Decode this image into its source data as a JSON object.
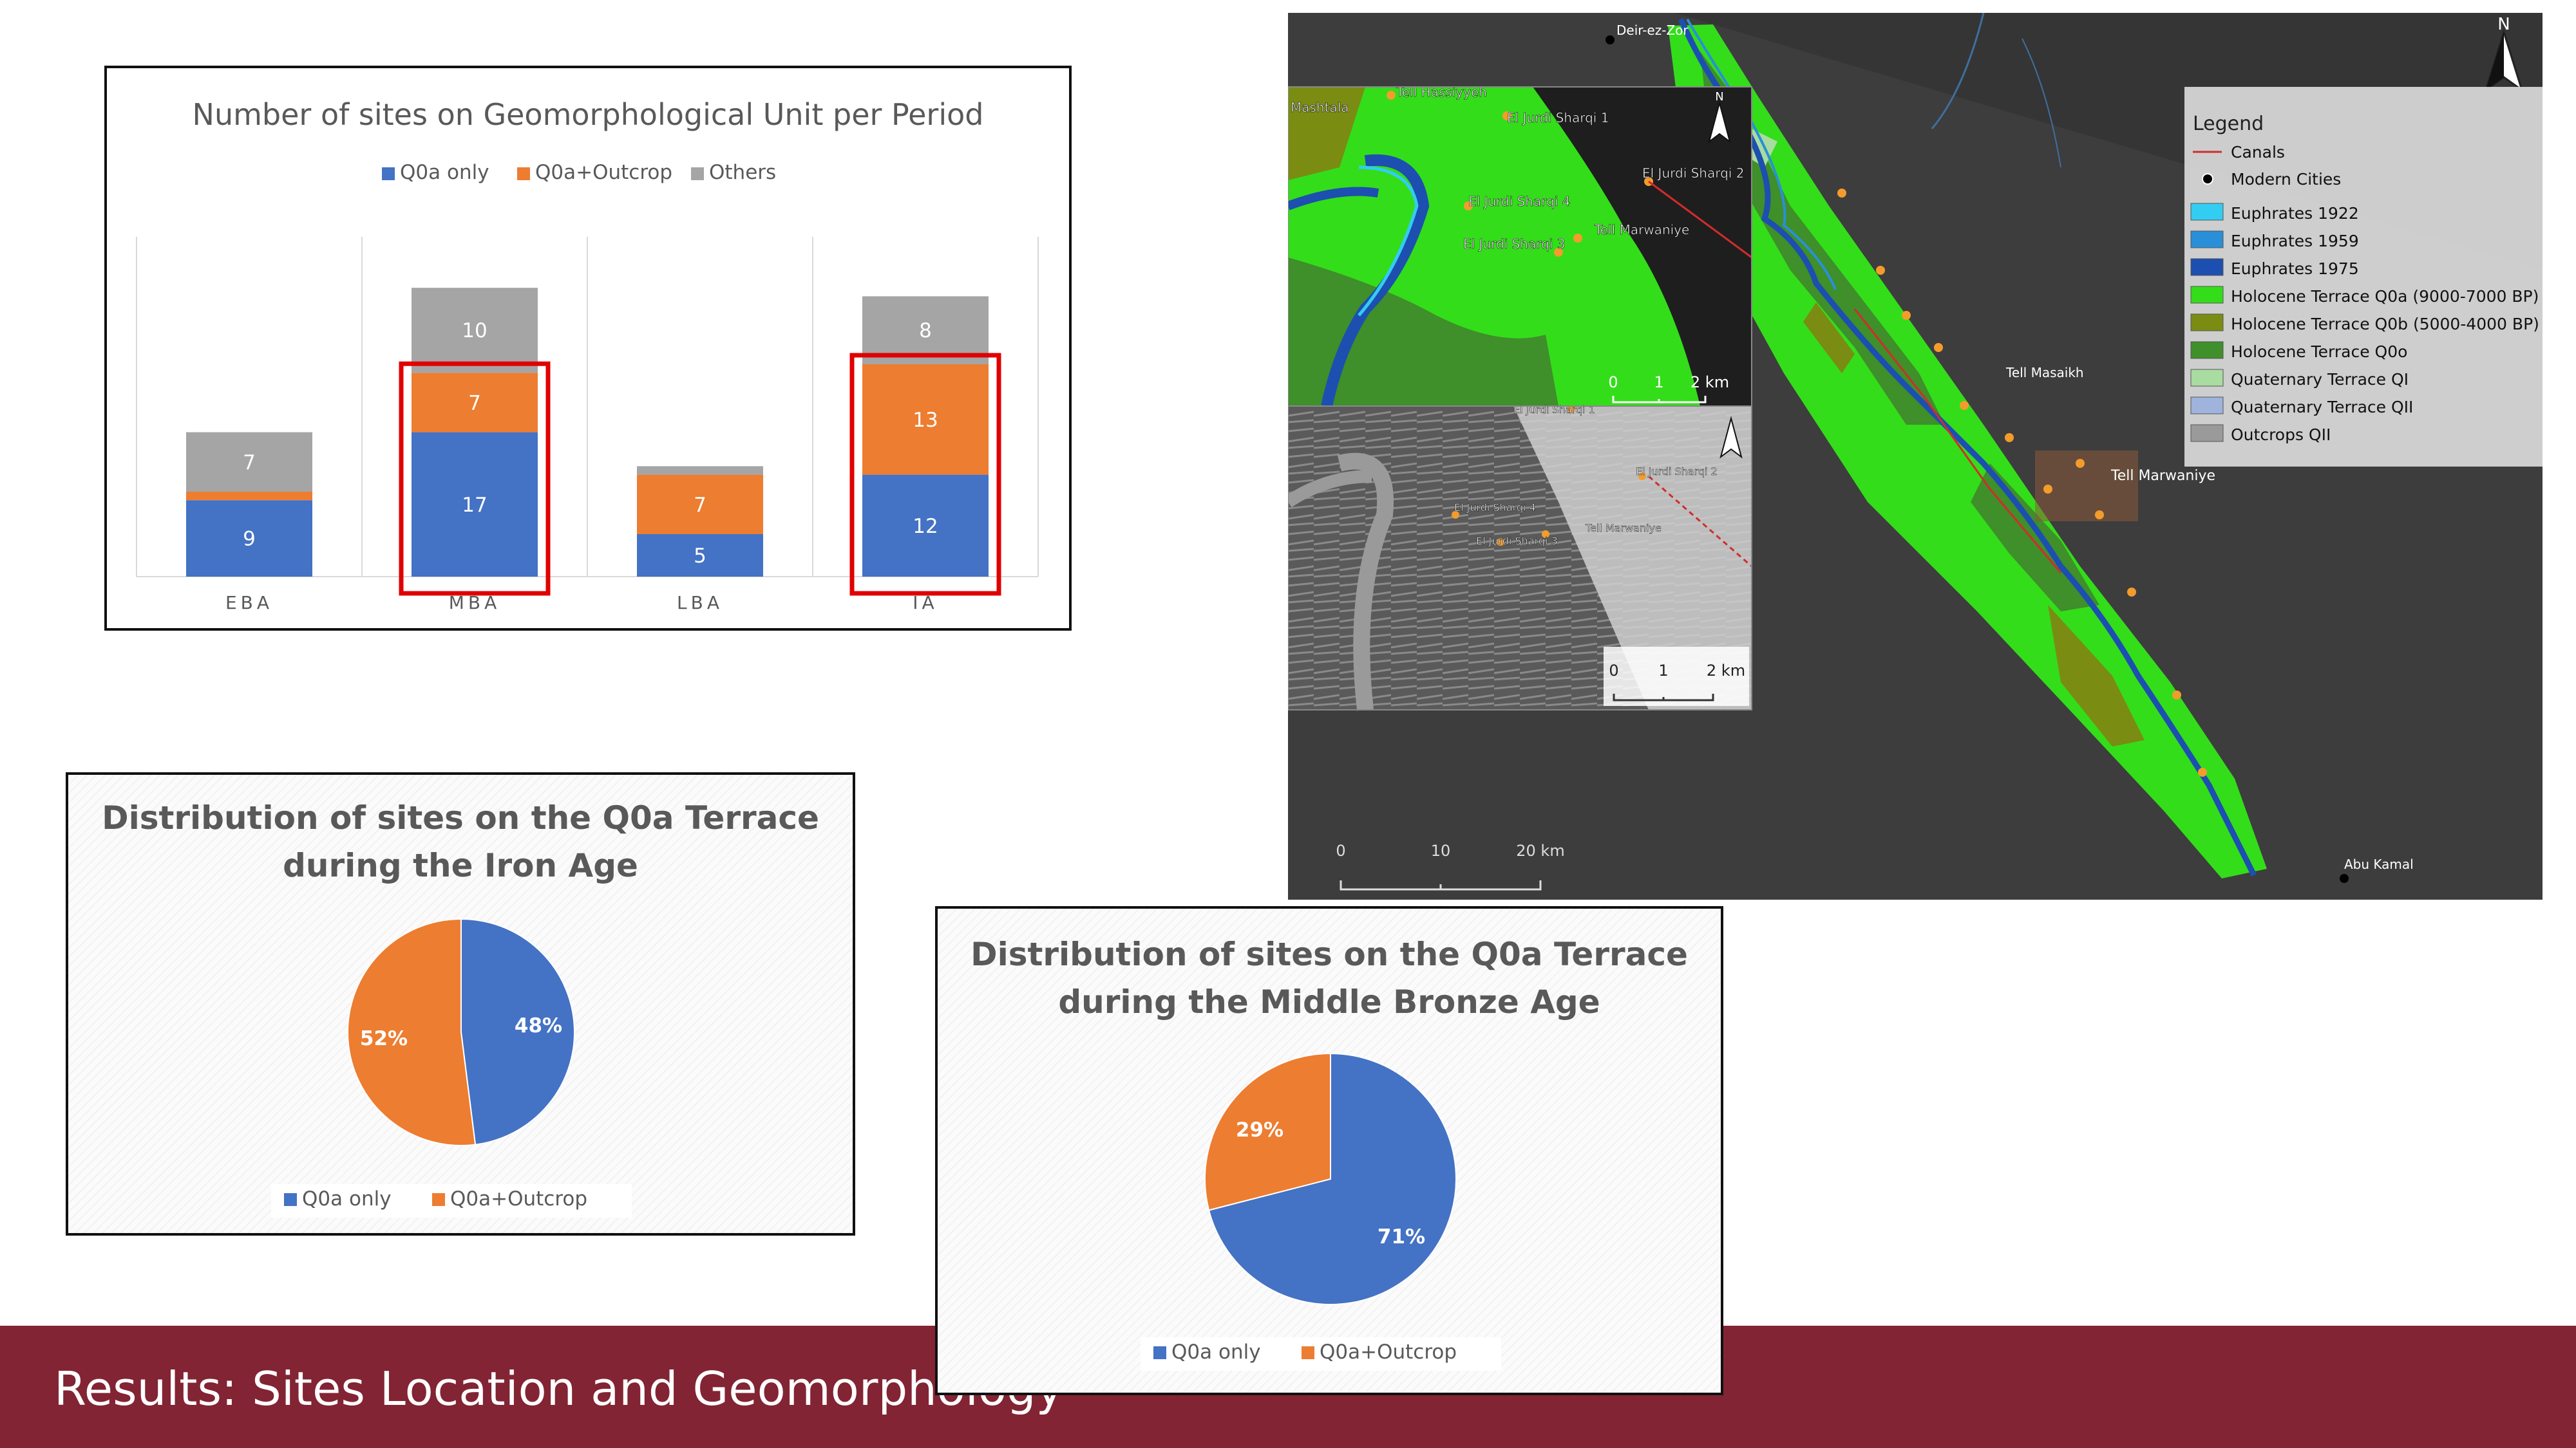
{
  "footer": {
    "title": "Results: Sites Location and Geomorphology"
  },
  "chart_data": [
    {
      "type": "bar",
      "stacked": true,
      "title": "Number of sites on Geomorphological Unit per Period",
      "categories": [
        "EBA",
        "MBA",
        "LBA",
        "IA"
      ],
      "series": [
        {
          "name": "Q0a only",
          "color": "#4472c4",
          "values": [
            9,
            17,
            5,
            12
          ]
        },
        {
          "name": "Q0a+Outcrop",
          "color": "#ed7d31",
          "values": [
            1,
            7,
            7,
            13
          ]
        },
        {
          "name": "Others",
          "color": "#a5a5a5",
          "values": [
            7,
            10,
            1,
            8
          ]
        }
      ],
      "data_labels": [
        [
          "9",
          "17",
          "5",
          "12"
        ],
        [
          "",
          "7",
          "7",
          "13"
        ],
        [
          "7",
          "10",
          "",
          "8"
        ]
      ],
      "highlighted_categories": [
        "MBA",
        "IA"
      ],
      "highlight_color": "#e00000",
      "ylim": [
        0,
        40
      ],
      "grid": "vertical separators",
      "legend": "top"
    },
    {
      "type": "pie",
      "title": "Distribution of sites on the Q0a Terrace during the Iron Age",
      "categories": [
        "Q0a only",
        "Q0a+Outcrop"
      ],
      "values": [
        48,
        52
      ],
      "labels": [
        "48%",
        "52%"
      ],
      "colors": [
        "#4472c4",
        "#ed7d31"
      ],
      "legend": "bottom"
    },
    {
      "type": "pie",
      "title": "Distribution of sites on the Q0a Terrace during the Middle Bronze Age",
      "categories": [
        "Q0a only",
        "Q0a+Outcrop"
      ],
      "values": [
        71,
        29
      ],
      "labels": [
        "71%",
        "29%"
      ],
      "colors": [
        "#4472c4",
        "#ed7d31"
      ],
      "legend": "bottom"
    }
  ],
  "map": {
    "north": "N",
    "legend_title": "Legend",
    "legend": [
      {
        "label": "Canals",
        "kind": "line",
        "color": "#d22c2c"
      },
      {
        "label": "Modern Cities",
        "kind": "dot",
        "color": "#000000"
      },
      {
        "label": "Euphrates 1922",
        "kind": "box",
        "color": "#33ccf2"
      },
      {
        "label": "Euphrates 1959",
        "kind": "box",
        "color": "#2a8fd9"
      },
      {
        "label": "Euphrates 1975",
        "kind": "box",
        "color": "#1c4fb0"
      },
      {
        "label": "Holocene Terrace Q0a (9000-7000 BP)",
        "kind": "box",
        "color": "#33dd1a"
      },
      {
        "label": "Holocene Terrace Q0b (5000-4000 BP)",
        "kind": "box",
        "color": "#7a8d12"
      },
      {
        "label": "Holocene Terrace Q0o",
        "kind": "box",
        "color": "#3f8f2a"
      },
      {
        "label": "Quaternary Terrace QI",
        "kind": "box",
        "color": "#a9dca0"
      },
      {
        "label": "Quaternary Terrace QII",
        "kind": "box",
        "color": "#9fb3dd"
      },
      {
        "label": "Outcrops QII",
        "kind": "box",
        "color": "#9a9a9a"
      }
    ],
    "place_labels": [
      "Deir-ez-Zor",
      "Tell Masaikh",
      "Tell Marwaniye",
      "Abu Kamal"
    ],
    "main_scale": [
      "0",
      "10",
      "20 km"
    ],
    "inset_top": {
      "labels": [
        "Tell Hassiyyeh",
        "Mashtala",
        "El Jurdi Sharqi 1",
        "El Jurdi Sharqi 2",
        "El Jurdi Sharqi 4",
        "Tell Marwaniye",
        "El Jurdi Sharqi 3"
      ],
      "scale": [
        "0",
        "1",
        "2 km"
      ]
    },
    "inset_bottom": {
      "labels": [
        "El Jurdi Sharqi 1",
        "El Jurdi Sharqi 2",
        "El Jurdi Sharqi 4",
        "Tell Marwaniye",
        "El Jurdi Sharqi 3"
      ],
      "scale": [
        "0",
        "1",
        "2 km"
      ]
    }
  }
}
